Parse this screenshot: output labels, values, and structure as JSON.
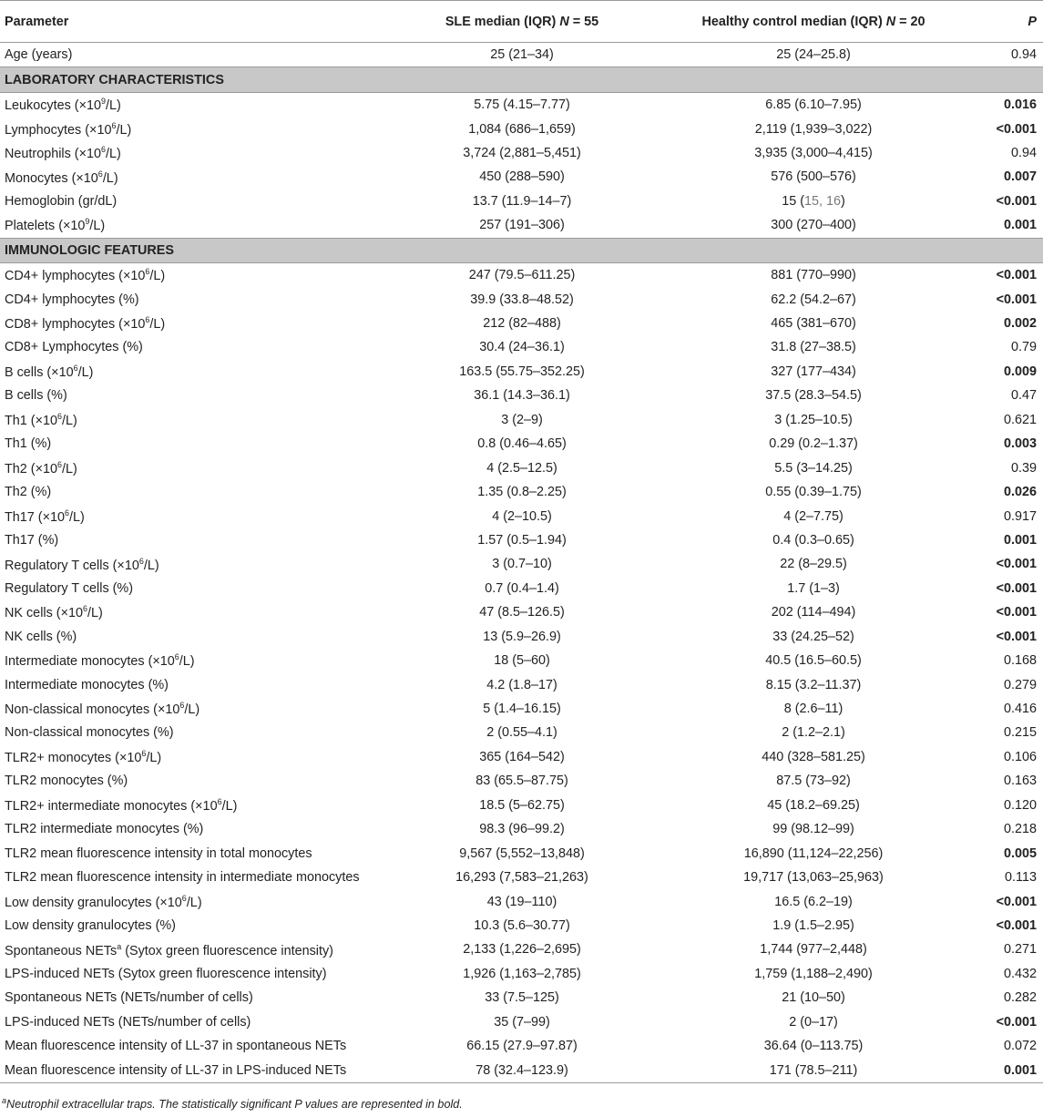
{
  "headers": {
    "parameter": "Parameter",
    "sle": "SLE median (IQR) ",
    "sle_n": "N",
    "sle_count": " = 55",
    "hc": "Healthy control median (IQR) ",
    "hc_n": "N",
    "hc_count": " = 20",
    "p": "P"
  },
  "rows": [
    {
      "type": "row",
      "param": "Age (years)",
      "sle": "25 (21–34)",
      "hc": "25 (24–25.8)",
      "p": "0.94",
      "sig": false
    },
    {
      "type": "section",
      "label": "LABORATORY CHARACTERISTICS"
    },
    {
      "type": "row",
      "param": "Leukocytes (×10",
      "sup": "9",
      "unit": "/L)",
      "sle": "5.75 (4.15–7.77)",
      "hc": "6.85 (6.10–7.95)",
      "p": "0.016",
      "sig": true
    },
    {
      "type": "row",
      "param": "Lymphocytes (×10",
      "sup": "6",
      "unit": "/L)",
      "sle": "1,084 (686–1,659)",
      "hc": "2,119 (1,939–3,022)",
      "p": "<0.001",
      "sig": true
    },
    {
      "type": "row",
      "param": "Neutrophils (×10",
      "sup": "6",
      "unit": "/L)",
      "sle": "3,724 (2,881–5,451)",
      "hc": "3,935 (3,000–4,415)",
      "p": "0.94",
      "sig": false
    },
    {
      "type": "row",
      "param": "Monocytes (×10",
      "sup": "6",
      "unit": "/L)",
      "sle": "450 (288–590)",
      "hc": "576 (500–576)",
      "p": "0.007",
      "sig": true
    },
    {
      "type": "row",
      "param": "Hemoglobin (gr/dL)",
      "sle": "13.7 (11.9–14–7)",
      "hc": "15 (",
      "hc_grey": "15, 16",
      "hc_tail": ")",
      "p": "<0.001",
      "sig": true
    },
    {
      "type": "row",
      "param": "Platelets (×10",
      "sup": "9",
      "unit": "/L)",
      "sle": "257 (191–306)",
      "hc": "300 (270–400)",
      "p": "0.001",
      "sig": true
    },
    {
      "type": "section",
      "label": "IMMUNOLOGIC FEATURES"
    },
    {
      "type": "row",
      "param": "CD4+ lymphocytes (×10",
      "sup": "6",
      "unit": "/L)",
      "sle": "247 (79.5–611.25)",
      "hc": "881 (770–990)",
      "p": "<0.001",
      "sig": true
    },
    {
      "type": "row",
      "param": "CD4+ lymphocytes (%)",
      "sle": "39.9 (33.8–48.52)",
      "hc": "62.2 (54.2–67)",
      "p": "<0.001",
      "sig": true
    },
    {
      "type": "row",
      "param": "CD8+ lymphocytes (×10",
      "sup": "6",
      "unit": "/L)",
      "sle": "212 (82–488)",
      "hc": "465 (381–670)",
      "p": "0.002",
      "sig": true
    },
    {
      "type": "row",
      "param": "CD8+ Lymphocytes (%)",
      "sle": "30.4 (24–36.1)",
      "hc": "31.8 (27–38.5)",
      "p": "0.79",
      "sig": false
    },
    {
      "type": "row",
      "param": "B cells (×10",
      "sup": "6",
      "unit": "/L)",
      "sle": "163.5 (55.75–352.25)",
      "hc": "327 (177–434)",
      "p": "0.009",
      "sig": true
    },
    {
      "type": "row",
      "param": "B cells (%)",
      "sle": "36.1 (14.3–36.1)",
      "hc": "37.5 (28.3–54.5)",
      "p": "0.47",
      "sig": false
    },
    {
      "type": "row",
      "param": "Th1 (×10",
      "sup": "6",
      "unit": "/L)",
      "sle": "3 (2–9)",
      "hc": "3 (1.25–10.5)",
      "p": "0.621",
      "sig": false
    },
    {
      "type": "row",
      "param": "Th1 (%)",
      "sle": "0.8 (0.46–4.65)",
      "hc": "0.29 (0.2–1.37)",
      "p": "0.003",
      "sig": true
    },
    {
      "type": "row",
      "param": "Th2 (×10",
      "sup": "6",
      "unit": "/L)",
      "sle": "4 (2.5–12.5)",
      "hc": "5.5 (3–14.25)",
      "p": "0.39",
      "sig": false
    },
    {
      "type": "row",
      "param": "Th2 (%)",
      "sle": "1.35 (0.8–2.25)",
      "hc": "0.55 (0.39–1.75)",
      "p": "0.026",
      "sig": true
    },
    {
      "type": "row",
      "param": "Th17 (×10",
      "sup": "6",
      "unit": "/L)",
      "sle": "4 (2–10.5)",
      "hc": "4 (2–7.75)",
      "p": "0.917",
      "sig": false
    },
    {
      "type": "row",
      "param": "Th17 (%)",
      "sle": "1.57 (0.5–1.94)",
      "hc": "0.4 (0.3–0.65)",
      "p": "0.001",
      "sig": true
    },
    {
      "type": "row",
      "param": "Regulatory T cells (×10",
      "sup": "6",
      "unit": "/L)",
      "sle": "3 (0.7–10)",
      "hc": "22 (8–29.5)",
      "p": "<0.001",
      "sig": true
    },
    {
      "type": "row",
      "param": "Regulatory T cells (%)",
      "sle": "0.7 (0.4–1.4)",
      "hc": "1.7 (1–3)",
      "p": "<0.001",
      "sig": true
    },
    {
      "type": "row",
      "param": "NK cells (×10",
      "sup": "6",
      "unit": "/L)",
      "sle": "47 (8.5–126.5)",
      "hc": "202 (114–494)",
      "p": "<0.001",
      "sig": true
    },
    {
      "type": "row",
      "param": "NK cells (%)",
      "sle": "13 (5.9–26.9)",
      "hc": "33 (24.25–52)",
      "p": "<0.001",
      "sig": true
    },
    {
      "type": "row",
      "param": "Intermediate monocytes (×10",
      "sup": "6",
      "unit": "/L)",
      "sle": "18 (5–60)",
      "hc": "40.5 (16.5–60.5)",
      "p": "0.168",
      "sig": false
    },
    {
      "type": "row",
      "param": "Intermediate monocytes (%)",
      "sle": "4.2 (1.8–17)",
      "hc": "8.15 (3.2–11.37)",
      "p": "0.279",
      "sig": false
    },
    {
      "type": "row",
      "param": "Non-classical monocytes (×10",
      "sup": "6",
      "unit": "/L)",
      "sle": "5 (1.4–16.15)",
      "hc": "8 (2.6–11)",
      "p": "0.416",
      "sig": false
    },
    {
      "type": "row",
      "param": "Non-classical monocytes (%)",
      "sle": "2 (0.55–4.1)",
      "hc": "2 (1.2–2.1)",
      "p": "0.215",
      "sig": false
    },
    {
      "type": "row",
      "param": "TLR2+ monocytes (×10",
      "sup": "6",
      "unit": "/L)",
      "sle": "365 (164–542)",
      "hc": "440 (328–581.25)",
      "p": "0.106",
      "sig": false
    },
    {
      "type": "row",
      "param": "TLR2 monocytes (%)",
      "sle": "83 (65.5–87.75)",
      "hc": "87.5 (73–92)",
      "p": "0.163",
      "sig": false
    },
    {
      "type": "row",
      "param": "TLR2+ intermediate monocytes (×10",
      "sup": "6",
      "unit": "/L)",
      "sle": "18.5 (5–62.75)",
      "hc": "45 (18.2–69.25)",
      "p": "0.120",
      "sig": false
    },
    {
      "type": "row",
      "param": "TLR2 intermediate monocytes (%)",
      "sle": "98.3 (96–99.2)",
      "hc": "99 (98.12–99)",
      "p": "0.218",
      "sig": false
    },
    {
      "type": "row",
      "param": "TLR2 mean fluorescence intensity in total monocytes",
      "sle": "9,567 (5,552–13,848)",
      "hc": "16,890 (11,124–22,256)",
      "p": "0.005",
      "sig": true
    },
    {
      "type": "row",
      "param": "TLR2 mean fluorescence intensity in intermediate monocytes",
      "sle": "16,293 (7,583–21,263)",
      "hc": "19,717 (13,063–25,963)",
      "p": "0.113",
      "sig": false
    },
    {
      "type": "row",
      "param": "Low density granulocytes (×10",
      "sup": "6",
      "unit": "/L)",
      "sle": "43 (19–110)",
      "hc": "16.5 (6.2–19)",
      "p": "<0.001",
      "sig": true
    },
    {
      "type": "row",
      "param": "Low density granulocytes (%)",
      "sle": "10.3 (5.6–30.77)",
      "hc": "1.9 (1.5–2.95)",
      "p": "<0.001",
      "sig": true
    },
    {
      "type": "row",
      "param": "Spontaneous NETs",
      "sup": "a",
      "unit": " (Sytox green fluorescence intensity)",
      "sle": "2,133 (1,226–2,695)",
      "hc": "1,744 (977–2,448)",
      "p": "0.271",
      "sig": false
    },
    {
      "type": "row",
      "param": "LPS-induced NETs (Sytox green fluorescence intensity)",
      "sle": "1,926 (1,163–2,785)",
      "hc": "1,759 (1,188–2,490)",
      "p": "0.432",
      "sig": false
    },
    {
      "type": "row",
      "param": "Spontaneous NETs (NETs/number of cells)",
      "sle": "33 (7.5–125)",
      "hc": "21 (10–50)",
      "p": "0.282",
      "sig": false
    },
    {
      "type": "row",
      "param": "LPS-induced NETs (NETs/number of cells)",
      "sle": "35 (7–99)",
      "hc": "2 (0–17)",
      "p": "<0.001",
      "sig": true
    },
    {
      "type": "row",
      "param": "Mean fluorescence intensity of LL-37 in spontaneous NETs",
      "sle": "66.15 (27.9–97.87)",
      "hc": "36.64 (0–113.75)",
      "p": "0.072",
      "sig": false
    },
    {
      "type": "row",
      "param": "Mean fluorescence intensity of LL-37 in LPS-induced NETs",
      "sle": "78 (32.4–123.9)",
      "hc": "171 (78.5–211)",
      "p": "0.001",
      "sig": true
    }
  ],
  "footnote": {
    "marker": "a",
    "text": "Neutrophil extracellular traps. The statistically significant P values are represented in bold."
  }
}
